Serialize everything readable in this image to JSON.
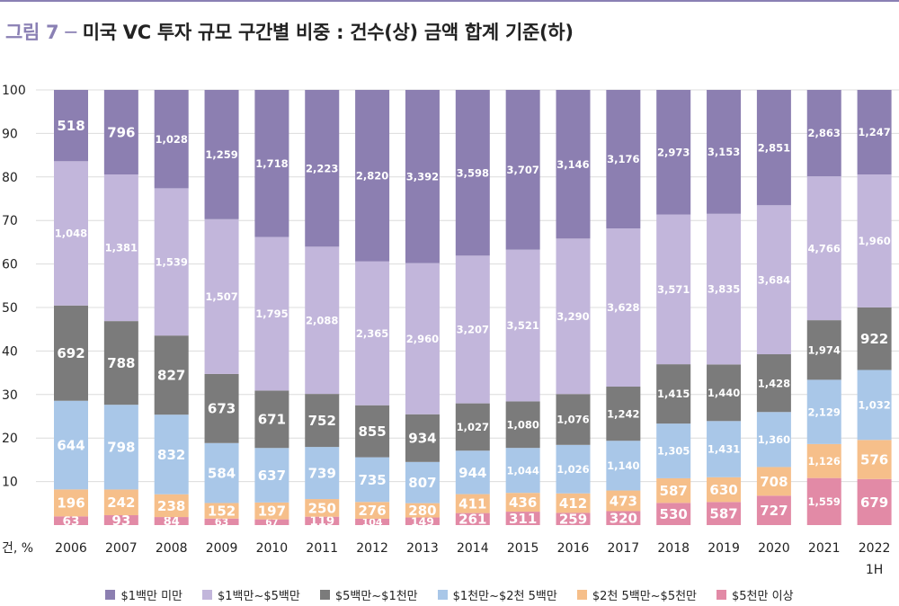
{
  "header": {
    "figure": "그림 7 ─",
    "title": "미국 VC 투자 규모 구간별 비중 : 건수(상) 금액 합계 기준(하)"
  },
  "axis": {
    "unit_label": "건, %",
    "y_ticks": [
      "100",
      "90",
      "80",
      "70",
      "60",
      "50",
      "40",
      "30",
      "20",
      "10"
    ]
  },
  "colors": {
    "lt1m": "#8c7fb1",
    "m1_5": "#c2b6db",
    "m5_10": "#7b7b7b",
    "m10_25": "#a9c7e8",
    "m25_50": "#f6bf8a",
    "gt50": "#e28aa6",
    "grid": "#dcdcdc",
    "topline": "#8a80b4"
  },
  "chart_data": {
    "type": "bar",
    "stacked": true,
    "normalized": true,
    "ylim": [
      0,
      100
    ],
    "grid": true,
    "legend_position": "bottom",
    "categories": [
      "2006",
      "2007",
      "2008",
      "2009",
      "2010",
      "2011",
      "2012",
      "2013",
      "2014",
      "2015",
      "2016",
      "2017",
      "2018",
      "2019",
      "2020",
      "2021",
      "2022\n1H"
    ],
    "series": [
      {
        "name": "$5천만 이상",
        "key": "gt50",
        "values": [
          63,
          93,
          84,
          63,
          67,
          119,
          104,
          149,
          261,
          311,
          259,
          320,
          530,
          587,
          727,
          1559,
          679
        ],
        "labels": [
          "63",
          "93",
          "84",
          "63",
          "67",
          "119",
          "104",
          "149",
          "261",
          "311",
          "259",
          "320",
          "530",
          "587",
          "727",
          "1,559",
          "679"
        ]
      },
      {
        "name": "$2천 5백만~$5천만",
        "key": "m25_50",
        "values": [
          196,
          242,
          238,
          152,
          197,
          250,
          276,
          280,
          411,
          436,
          412,
          473,
          587,
          630,
          708,
          1126,
          576
        ],
        "labels": [
          "196",
          "242",
          "238",
          "152",
          "197",
          "250",
          "276",
          "280",
          "411",
          "436",
          "412",
          "473",
          "587",
          "630",
          "708",
          "1,126",
          "576"
        ]
      },
      {
        "name": "$1천만~$2천 5백만",
        "key": "m10_25",
        "values": [
          644,
          798,
          832,
          584,
          637,
          739,
          735,
          807,
          944,
          1044,
          1026,
          1140,
          1305,
          1431,
          1360,
          2129,
          1032
        ],
        "labels": [
          "644",
          "798",
          "832",
          "584",
          "637",
          "739",
          "735",
          "807",
          "944",
          "1,044",
          "1,026",
          "1,140",
          "1,305",
          "1,431",
          "1,360",
          "2,129",
          "1,032"
        ]
      },
      {
        "name": "$5백만~$1천만",
        "key": "m5_10",
        "values": [
          692,
          788,
          827,
          673,
          671,
          752,
          855,
          934,
          1027,
          1080,
          1076,
          1242,
          1415,
          1440,
          1428,
          1974,
          922
        ],
        "labels": [
          "692",
          "788",
          "827",
          "673",
          "671",
          "752",
          "855",
          "934",
          "1,027",
          "1,080",
          "1,076",
          "1,242",
          "1,415",
          "1,440",
          "1,428",
          "1,974",
          "922"
        ]
      },
      {
        "name": "$1백만~$5백만",
        "key": "m1_5",
        "values": [
          1048,
          1381,
          1539,
          1507,
          1795,
          2088,
          2365,
          2960,
          3207,
          3521,
          3290,
          3628,
          3571,
          3835,
          3684,
          4766,
          1960
        ],
        "labels": [
          "1,048",
          "1,381",
          "1,539",
          "1,507",
          "1,795",
          "2,088",
          "2,365",
          "2,960",
          "3,207",
          "3,521",
          "3,290",
          "3,628",
          "3,571",
          "3,835",
          "3,684",
          "4,766",
          "1,960"
        ]
      },
      {
        "name": "$1백만 미만",
        "key": "lt1m",
        "values": [
          518,
          796,
          1028,
          1259,
          1718,
          2223,
          2820,
          3392,
          3598,
          3707,
          3146,
          3176,
          2973,
          3153,
          2851,
          2863,
          1247
        ],
        "labels": [
          "518",
          "796",
          "1,028",
          "1,259",
          "1,718",
          "2,223",
          "2,820",
          "3,392",
          "3,598",
          "3,707",
          "3,146",
          "3,176",
          "2,973",
          "3,153",
          "2,851",
          "2,863",
          "1,247"
        ]
      }
    ]
  },
  "legend": [
    {
      "key": "lt1m",
      "label": "$1백만 미만"
    },
    {
      "key": "m1_5",
      "label": "$1백만~$5백만"
    },
    {
      "key": "m5_10",
      "label": "$5백만~$1천만"
    },
    {
      "key": "m10_25",
      "label": "$1천만~$2천 5백만"
    },
    {
      "key": "m25_50",
      "label": "$2천 5백만~$5천만"
    },
    {
      "key": "gt50",
      "label": "$5천만 이상"
    }
  ]
}
